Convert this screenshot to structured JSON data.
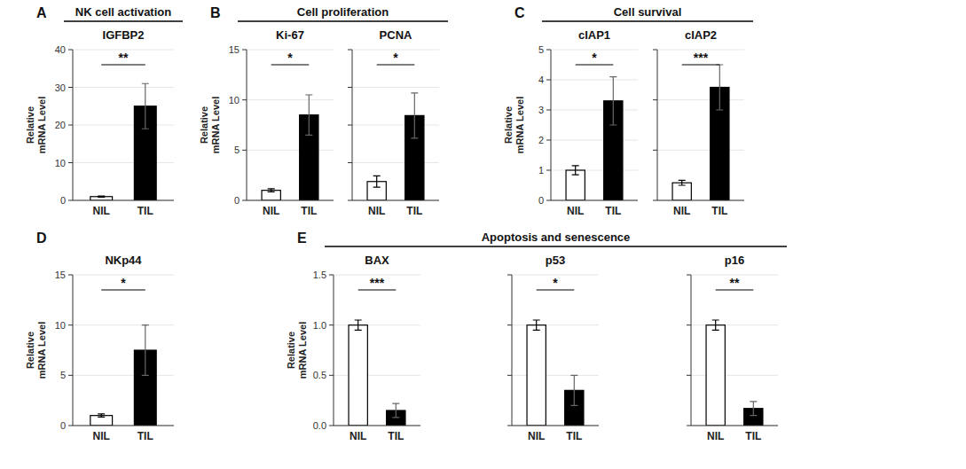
{
  "chart_data": [
    {
      "type": "bar",
      "title": "IGFBP2",
      "categories": [
        "NIL",
        "TIL"
      ],
      "values": [
        1.0,
        25.0
      ],
      "errors": [
        0.15,
        6.0
      ],
      "colors": [
        "white",
        "black"
      ],
      "ylim": [
        0,
        40
      ],
      "yticks": [
        0,
        10,
        20,
        30,
        40
      ],
      "y_label": "Relative\nmRNA Level",
      "annotations": [
        "**",
        "A",
        "NK cell activation"
      ]
    },
    {
      "type": "bar",
      "title": "Ki-67",
      "categories": [
        "NIL",
        "TIL"
      ],
      "values": [
        1.0,
        8.5
      ],
      "errors": [
        0.15,
        2.0
      ],
      "colors": [
        "white",
        "black"
      ],
      "ylim": [
        0,
        15
      ],
      "yticks": [
        0,
        5,
        10,
        15
      ],
      "y_label": "Relative\nmRNA Level",
      "annotations": [
        "*",
        "B",
        "Cell proliferation"
      ]
    },
    {
      "type": "bar",
      "title": "PCNA",
      "categories": [
        "NIL",
        "TIL"
      ],
      "values": [
        1.0,
        4.5
      ],
      "errors": [
        0.3,
        1.2
      ],
      "colors": [
        "white",
        "black"
      ],
      "ylim": [
        0,
        8
      ],
      "yticks": [
        0,
        2,
        4,
        6,
        8
      ],
      "tick_labels": "x",
      "annotations": [
        "*"
      ]
    },
    {
      "type": "bar",
      "title": "cIAP1",
      "categories": [
        "NIL",
        "TIL"
      ],
      "values": [
        1.0,
        3.3
      ],
      "errors": [
        0.15,
        0.8
      ],
      "colors": [
        "white",
        "black"
      ],
      "ylim": [
        0,
        5
      ],
      "yticks": [
        0,
        1,
        2,
        3,
        4,
        5
      ],
      "y_label": "Relative\nmRNA Level",
      "annotations": [
        "*",
        "C",
        "Cell survival"
      ]
    },
    {
      "type": "bar",
      "title": "cIAP2",
      "categories": [
        "NIL",
        "TIL"
      ],
      "values": [
        0.7,
        4.5
      ],
      "errors": [
        0.1,
        0.9
      ],
      "colors": [
        "white",
        "black"
      ],
      "ylim": [
        0,
        6
      ],
      "yticks": [
        0,
        2,
        4,
        6
      ],
      "tick_labels": "x",
      "annotations": [
        "***"
      ]
    },
    {
      "type": "bar",
      "title": "NKp44",
      "categories": [
        "NIL",
        "TIL"
      ],
      "values": [
        1.0,
        7.5
      ],
      "errors": [
        0.15,
        2.5
      ],
      "colors": [
        "white",
        "black"
      ],
      "ylim": [
        0,
        15
      ],
      "yticks": [
        0,
        5,
        10,
        15
      ],
      "y_label": "Relative\nmRNA Level",
      "annotations": [
        "*",
        "D"
      ]
    },
    {
      "type": "bar",
      "title": "BAX",
      "categories": [
        "NIL",
        "TIL"
      ],
      "values": [
        1.0,
        0.15
      ],
      "errors": [
        0.05,
        0.07
      ],
      "colors": [
        "white",
        "black"
      ],
      "ylim": [
        0,
        1.5
      ],
      "yticks": [
        {
          "value": 0,
          "label": "0.0"
        },
        0.5,
        {
          "value": 1,
          "label": "1.0"
        },
        1.5
      ],
      "y_label": "Relative\nmRNA Level",
      "annotations": [
        "***",
        "E",
        "Apoptosis and senescence"
      ]
    },
    {
      "type": "bar",
      "title": "p53",
      "categories": [
        "NIL",
        "TIL"
      ],
      "values": [
        1.0,
        0.35
      ],
      "errors": [
        0.05,
        0.15
      ],
      "colors": [
        "white",
        "black"
      ],
      "ylim": [
        0,
        1.5
      ],
      "yticks": [
        0.0,
        0.5,
        1.0,
        1.5
      ],
      "tick_labels": "x",
      "annotations": [
        "*"
      ]
    },
    {
      "type": "bar",
      "title": "p16",
      "categories": [
        "NIL",
        "TIL"
      ],
      "values": [
        1.0,
        0.17
      ],
      "errors": [
        0.05,
        0.07
      ],
      "colors": [
        "white",
        "black"
      ],
      "ylim": [
        0,
        1.5
      ],
      "yticks": [
        0.0,
        0.5,
        1.0,
        1.5
      ],
      "tick_labels": "x",
      "annotations": [
        "**"
      ]
    }
  ]
}
